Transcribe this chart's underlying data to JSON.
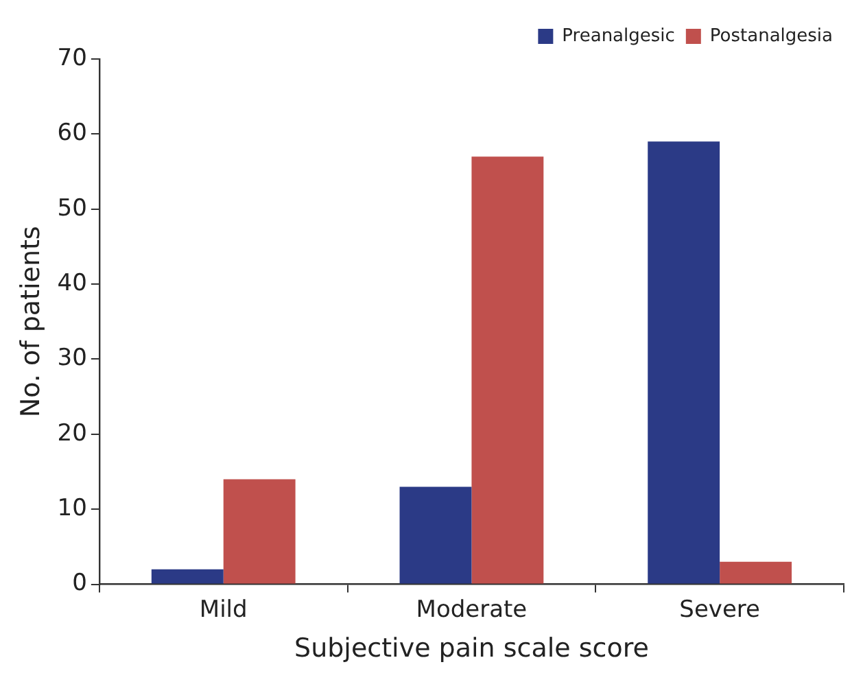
{
  "chart_data": {
    "type": "bar",
    "xlabel": "Subjective pain scale score",
    "ylabel": "No. of patients",
    "categories": [
      "Mild",
      "Moderate",
      "Severe"
    ],
    "series": [
      {
        "name": "Preanalgesic",
        "color": "#2b3a86",
        "values": [
          2,
          13,
          59
        ]
      },
      {
        "name": "Postanalgesia",
        "color": "#c0504d",
        "values": [
          14,
          57,
          3
        ]
      }
    ],
    "ylim": [
      0,
      70
    ],
    "yticks": [
      0,
      10,
      20,
      30,
      40,
      50,
      60,
      70
    ],
    "grid": false,
    "legend": "top right"
  }
}
